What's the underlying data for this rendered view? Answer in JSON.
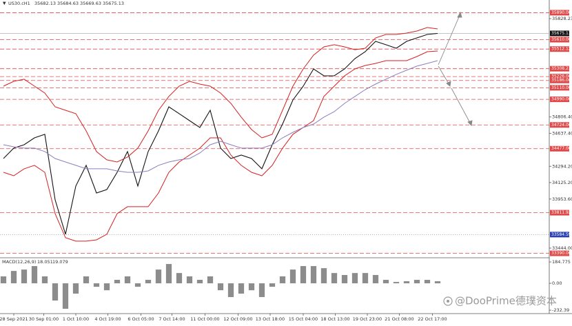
{
  "chart_data": {
    "type": "line",
    "title": "US30.cH1",
    "ohlc": [
      "35682.13",
      "35684.63",
      "35669.63",
      "35675.13"
    ],
    "x": [
      0,
      1,
      2,
      3,
      4,
      5,
      6,
      7,
      8,
      9,
      10,
      11,
      12,
      13,
      14,
      15,
      16,
      17,
      18,
      19,
      20,
      21,
      22,
      23,
      24,
      25,
      26,
      27,
      28,
      29,
      30,
      31,
      32,
      33,
      34,
      35,
      36,
      37,
      38,
      39,
      40,
      41,
      42
    ],
    "xlim": [
      -0.333,
      52.667
    ],
    "xticks": [
      {
        "value": 1,
        "label": "28 Sep 2021"
      },
      {
        "value": 3.9,
        "label": "30 Sep 01:00"
      },
      {
        "value": 7,
        "label": "1 Oct 10:00"
      },
      {
        "value": 10.1,
        "label": "4 Oct 19:00"
      },
      {
        "value": 13.3,
        "label": "6 Oct 05:00"
      },
      {
        "value": 16.3,
        "label": "7 Oct 14:00"
      },
      {
        "value": 19.5,
        "label": "11 Oct 00:00"
      },
      {
        "value": 22.7,
        "label": "12 Oct 09:00"
      },
      {
        "value": 25.8,
        "label": "13 Oct 18:00"
      },
      {
        "value": 29,
        "label": "15 Oct 04:00"
      },
      {
        "value": 32.1,
        "label": "18 Oct 13:00"
      },
      {
        "value": 35.2,
        "label": "19 Oct 23:00"
      },
      {
        "value": 38.3,
        "label": "21 Oct 08:00"
      },
      {
        "value": 41.5,
        "label": "22 Oct 17:00"
      }
    ],
    "ylim": [
      33358,
      36022
    ],
    "yticks": [
      35828.23,
      {
        "value": 34806.4,
        "label": "34806.40"
      },
      {
        "value": 34637.4,
        "label": "34637.40"
      },
      {
        "value": 34294.2,
        "label": "34294.20"
      },
      {
        "value": 34125.2,
        "label": "34125.20"
      },
      {
        "value": 33953.6,
        "label": "33953.60"
      },
      {
        "value": 33444,
        "label": "33444.00"
      }
    ],
    "series": [
      {
        "color": "#111111",
        "values": [
          34375,
          34483,
          34518,
          34590,
          34626,
          33946,
          33588,
          34089,
          34304,
          34017,
          34053,
          34232,
          34447,
          34089,
          34447,
          34662,
          34912,
          34841,
          34769,
          34697,
          34876,
          34483,
          34375,
          34411,
          34375,
          34268,
          34518,
          34733,
          34983,
          35127,
          35306,
          35234,
          35234,
          35306,
          35413,
          35485,
          35592,
          35557,
          35521,
          35592,
          35628,
          35664,
          35675
        ]
      },
      {
        "color": "#d42020",
        "values": [
          35127,
          35177,
          35199,
          35127,
          35055,
          34912,
          34876,
          34841,
          34662,
          34447,
          34361,
          34339,
          34390,
          34483,
          34662,
          34876,
          35020,
          35127,
          35177,
          35148,
          35127,
          35055,
          34948,
          34805,
          34676,
          34590,
          34626,
          34876,
          35127,
          35306,
          35449,
          35535,
          35557,
          35535,
          35506,
          35521,
          35628,
          35664,
          35664,
          35678,
          35700,
          35736,
          35721
        ]
      },
      {
        "color": "#d42020",
        "values": [
          34232,
          34196,
          34268,
          34304,
          34232,
          33802,
          33552,
          33516,
          33516,
          33530,
          33588,
          33802,
          33874,
          33874,
          33874,
          34017,
          34232,
          34339,
          34411,
          34483,
          34590,
          34590,
          34411,
          34304,
          34232,
          34196,
          34304,
          34483,
          34626,
          34697,
          34769,
          35020,
          35127,
          35234,
          35306,
          35342,
          35363,
          35392,
          35392,
          35392,
          35435,
          35485,
          35492
        ]
      },
      {
        "color": "#8a7fc0",
        "values": [
          34518,
          34497,
          34483,
          34483,
          34447,
          34375,
          34339,
          34304,
          34268,
          34268,
          34268,
          34246,
          34232,
          34232,
          34246,
          34304,
          34339,
          34361,
          34375,
          34432,
          34518,
          34554,
          34518,
          34483,
          34483,
          34483,
          34518,
          34590,
          34647,
          34697,
          34733,
          34805,
          34862,
          34948,
          35020,
          35091,
          35148,
          35199,
          35249,
          35292,
          35335,
          35363,
          35392
        ]
      }
    ],
    "levels": [
      {
        "value": 35890,
        "label": "35890.00"
      },
      {
        "value": 35610,
        "label": "35610.00"
      },
      {
        "value": 35512.12,
        "label": "35512.12"
      },
      {
        "value": 35308.23,
        "label": "35308.23"
      },
      {
        "value": 35226,
        "label": "35226.00"
      },
      {
        "value": 35186,
        "label": "35186.00"
      },
      {
        "value": 35110,
        "label": "35110.00"
      },
      {
        "value": 34990,
        "label": "34990.00"
      },
      {
        "value": 34724,
        "label": "34724.00"
      },
      {
        "value": 34477,
        "label": "34477.00"
      },
      {
        "value": 33811.92,
        "label": "33811.92"
      },
      {
        "value": 33390,
        "label": "33390.00"
      }
    ],
    "level_color": "#e04848",
    "support": {
      "value": 33584.59,
      "label": "33584.59",
      "color": "#2a3fb0"
    },
    "last_price": {
      "value": 35675.13,
      "label": "35675.13"
    },
    "macd": {
      "label": "MACD(12,26,9)",
      "readout": [
        "18.051",
        "19.079"
      ],
      "color": "#8c8c8c",
      "ylim": [
        -244,
        209
      ],
      "yticks": [
        184.775,
        {
          "value": 0,
          "label": "0.00"
        },
        -232.39
      ],
      "values": [
        60,
        107,
        119,
        149,
        60,
        -149,
        -220,
        -89,
        60,
        -30,
        -60,
        30,
        60,
        -30,
        30,
        119,
        167,
        89,
        60,
        30,
        60,
        -60,
        -119,
        -89,
        -60,
        -119,
        -30,
        60,
        119,
        149,
        149,
        131,
        89,
        72,
        89,
        89,
        72,
        30,
        12,
        18,
        30,
        30,
        18
      ]
    },
    "watermark": "@DooPrime德璞资本"
  }
}
